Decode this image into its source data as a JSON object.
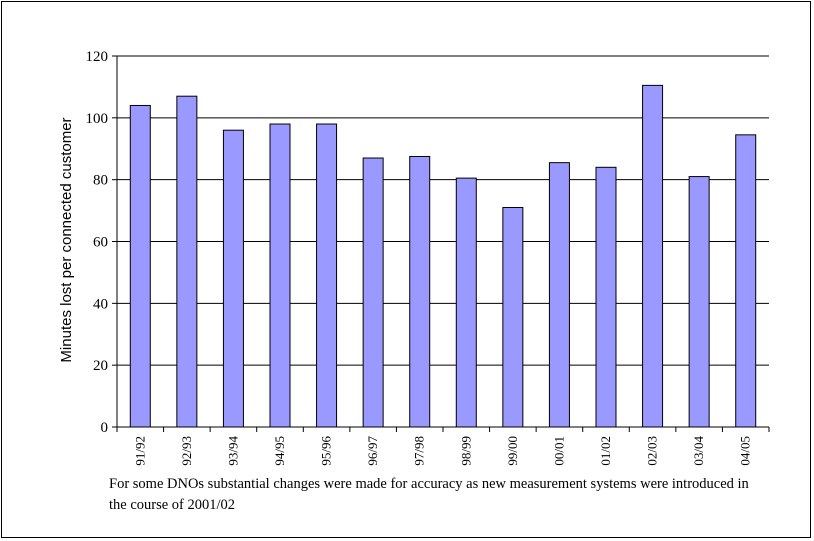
{
  "chart_data": {
    "type": "bar",
    "title": "",
    "xlabel": "",
    "ylabel": "Minutes lost per connected customer",
    "categories": [
      "91/92",
      "92/93",
      "93/94",
      "94/95",
      "95/96",
      "96/97",
      "97/98",
      "98/99",
      "99/00",
      "00/01",
      "01/02",
      "02/03",
      "03/04",
      "04/05"
    ],
    "values": [
      104,
      107,
      96,
      98,
      98,
      87,
      87.5,
      80.5,
      71,
      85.5,
      84,
      110.5,
      81,
      94.5
    ],
    "ylim": [
      0,
      120
    ],
    "yticks": [
      0,
      20,
      40,
      60,
      80,
      100,
      120
    ],
    "grid": true,
    "legend": "none",
    "colors": {
      "bar_fill": "#9999ff",
      "bar_stroke": "#000000",
      "grid": "#000000"
    }
  },
  "footnote": "For some DNOs substantial changes were made for accuracy as new measurement systems were introduced in the course of 2001/02"
}
